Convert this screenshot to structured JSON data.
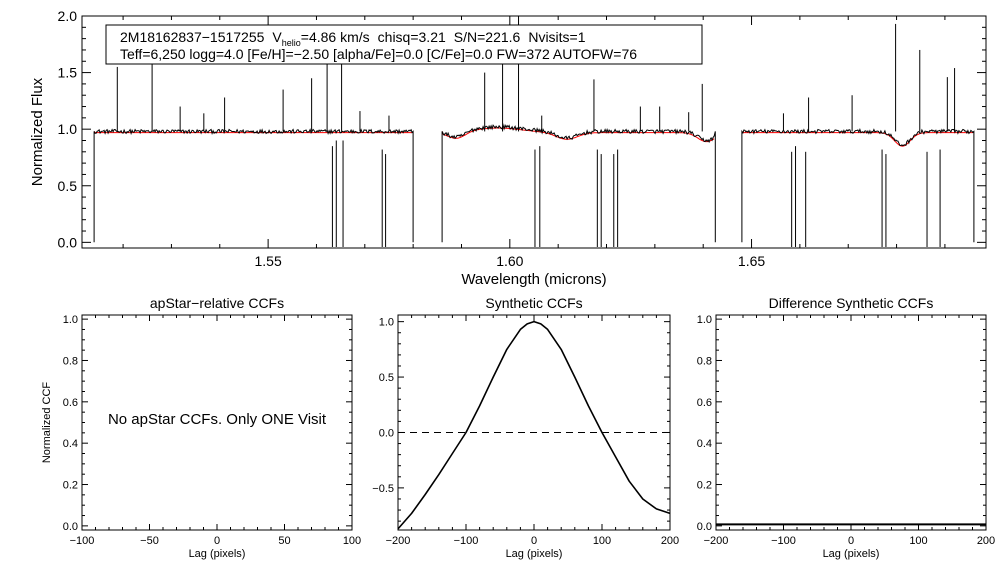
{
  "chart_data": [
    {
      "id": "spectrum",
      "type": "line",
      "xlabel": "Wavelength (microns)",
      "ylabel": "Normalized Flux",
      "xlim": [
        1.5115,
        1.6985
      ],
      "ylim": [
        -0.05,
        2.0
      ],
      "xticks": [
        1.55,
        1.6,
        1.65
      ],
      "xtick_labels": [
        "1.55",
        "1.60",
        "1.65"
      ],
      "yticks": [
        0.0,
        0.5,
        1.0,
        1.5,
        2.0
      ],
      "ytick_labels": [
        "0.0",
        "0.5",
        "1.0",
        "1.5",
        "2.0"
      ],
      "info": {
        "star_id": "2M18162837−1517255",
        "v_prefix": "V",
        "v_sub": "helio",
        "v_value": "=4.86 km/s",
        "chisq": "chisq=3.21",
        "snr": "S/N=221.6",
        "nvisits": "Nvisits=1",
        "line2": "Teff=6,250 logg=4.0 [Fe/H]=−2.50 [alpha/Fe]=0.0 [C/Fe]=0.0 FW=372 AUTOFW=76"
      },
      "chips": [
        [
          1.514,
          1.58
        ],
        [
          1.586,
          1.6425
        ],
        [
          1.648,
          1.696
        ]
      ],
      "continuum": 0.98,
      "spikes": [
        [
          1.5188,
          1.55
        ],
        [
          1.526,
          1.62
        ],
        [
          1.5318,
          1.2
        ],
        [
          1.5367,
          1.14
        ],
        [
          1.541,
          1.28
        ],
        [
          1.5531,
          1.35
        ],
        [
          1.559,
          1.45
        ],
        [
          1.5622,
          1.6
        ],
        [
          1.5652,
          1.7
        ],
        [
          1.569,
          1.16
        ],
        [
          1.575,
          1.12
        ],
        [
          1.5948,
          1.5
        ],
        [
          1.5985,
          1.68
        ],
        [
          1.6018,
          2.0
        ],
        [
          1.6066,
          1.12
        ],
        [
          1.6174,
          1.44
        ],
        [
          1.627,
          1.2
        ],
        [
          1.631,
          1.2
        ],
        [
          1.637,
          1.15
        ],
        [
          1.6398,
          1.4
        ],
        [
          1.6566,
          1.14
        ],
        [
          1.6618,
          1.28
        ],
        [
          1.6708,
          1.3
        ],
        [
          1.6798,
          1.93
        ],
        [
          1.6848,
          1.7
        ],
        [
          1.6905,
          1.46
        ],
        [
          1.692,
          1.54
        ]
      ],
      "drops": [
        [
          1.5633,
          0.85
        ],
        [
          1.5641,
          0.9
        ],
        [
          1.5655,
          0.9
        ],
        [
          1.5736,
          0.82
        ],
        [
          1.5743,
          0.78
        ],
        [
          1.6052,
          0.82
        ],
        [
          1.6062,
          0.85
        ],
        [
          1.6181,
          0.82
        ],
        [
          1.6189,
          0.78
        ],
        [
          1.6215,
          0.78
        ],
        [
          1.6223,
          0.82
        ],
        [
          1.6583,
          0.8
        ],
        [
          1.6591,
          0.85
        ],
        [
          1.6612,
          0.8
        ],
        [
          1.677,
          0.82
        ],
        [
          1.6778,
          0.78
        ],
        [
          1.6863,
          0.8
        ],
        [
          1.689,
          0.82
        ]
      ],
      "absorption": [
        [
          1.589,
          0.06,
          0.0018
        ],
        [
          1.5975,
          -0.04,
          0.005
        ],
        [
          1.6118,
          0.06,
          0.0022
        ],
        [
          1.6407,
          0.08,
          0.0018
        ],
        [
          1.6812,
          0.12,
          0.0016
        ]
      ],
      "series": [
        {
          "name": "observed",
          "color": "#000000"
        },
        {
          "name": "model",
          "color": "#ff0000"
        }
      ]
    },
    {
      "id": "apstar_ccf",
      "type": "line",
      "title": "apStar−relative CCFs",
      "xlabel": "Lag (pixels)",
      "ylabel": "Normalized CCF",
      "xlim": [
        -100,
        100
      ],
      "ylim": [
        -0.02,
        1.02
      ],
      "xticks": [
        -100,
        -50,
        0,
        50,
        100
      ],
      "xtick_labels": [
        "−100",
        "−50",
        "0",
        "50",
        "100"
      ],
      "yticks": [
        0.0,
        0.2,
        0.4,
        0.6,
        0.8,
        1.0
      ],
      "ytick_labels": [
        "0.0",
        "0.2",
        "0.4",
        "0.6",
        "0.8",
        "1.0"
      ],
      "annotation": "No apStar CCFs.  Only ONE Visit",
      "series": []
    },
    {
      "id": "synthetic_ccf",
      "type": "line",
      "title": "Synthetic CCFs",
      "xlabel": "Lag (pixels)",
      "xlim": [
        -200,
        200
      ],
      "ylim": [
        -0.88,
        1.06
      ],
      "xticks": [
        -200,
        -100,
        0,
        100,
        200
      ],
      "xtick_labels": [
        "−200",
        "−100",
        "0",
        "100",
        "200"
      ],
      "yticks": [
        -0.5,
        0.0,
        0.5,
        1.0
      ],
      "ytick_labels": [
        "−0.5",
        "0.0",
        "0.5",
        "1.0"
      ],
      "reference_line": 0.0,
      "series": [
        {
          "name": "CCF",
          "x": [
            -200,
            -180,
            -160,
            -140,
            -120,
            -100,
            -80,
            -60,
            -40,
            -20,
            -10,
            0,
            10,
            20,
            40,
            60,
            80,
            100,
            120,
            140,
            160,
            180,
            200
          ],
          "y": [
            -0.87,
            -0.73,
            -0.56,
            -0.38,
            -0.19,
            0.0,
            0.24,
            0.5,
            0.75,
            0.93,
            0.98,
            1.0,
            0.98,
            0.93,
            0.75,
            0.5,
            0.24,
            0.0,
            -0.22,
            -0.44,
            -0.6,
            -0.69,
            -0.73
          ]
        }
      ]
    },
    {
      "id": "diff_ccf",
      "type": "line",
      "title": "Difference Synthetic CCFs",
      "xlabel": "Lag (pixels)",
      "xlim": [
        -200,
        200
      ],
      "ylim": [
        -0.02,
        1.02
      ],
      "xticks": [
        -200,
        -100,
        0,
        100,
        200
      ],
      "xtick_labels": [
        "−200",
        "−100",
        "0",
        "100",
        "200"
      ],
      "yticks": [
        0.0,
        0.2,
        0.4,
        0.6,
        0.8,
        1.0
      ],
      "ytick_labels": [
        "0.0",
        "0.2",
        "0.4",
        "0.6",
        "0.8",
        "1.0"
      ],
      "series": [
        {
          "name": "difference",
          "x": [
            -200,
            200
          ],
          "y": [
            0.0,
            0.0
          ]
        }
      ]
    }
  ]
}
